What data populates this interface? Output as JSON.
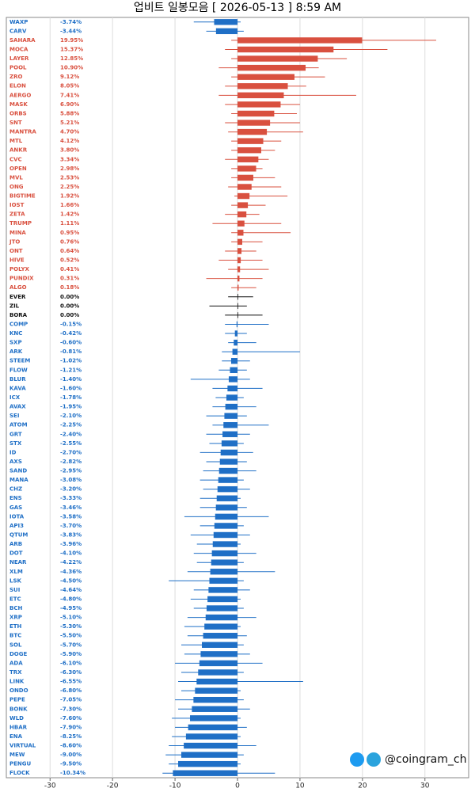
{
  "chart_data": {
    "type": "range-bar",
    "title": "업비트 일봉모음 [ 2026-05-13 ]  8:59 AM",
    "watermark": "@coingram_ch",
    "xlim": [
      -37,
      37
    ],
    "xticks": [
      -30,
      -20,
      -10,
      0,
      10,
      20,
      30
    ],
    "grid": true,
    "colors": {
      "up": "#d9503f",
      "flat": "#111111",
      "down": "#1f6fc6"
    },
    "categories": [
      "WAXP",
      "CARV",
      "SAHARA",
      "MOCA",
      "LAYER",
      "POOL",
      "ZRO",
      "ELON",
      "AERGO",
      "MASK",
      "ORBS",
      "SNT",
      "MANTRA",
      "MTL",
      "ANKR",
      "CVC",
      "OPEN",
      "MVL",
      "ONG",
      "BIGTIME",
      "IOST",
      "ZETA",
      "TRUMP",
      "MINA",
      "JTO",
      "ONT",
      "HIVE",
      "POLYX",
      "PUNDIX",
      "ALGO",
      "EVER",
      "ZIL",
      "BORA",
      "COMP",
      "KNC",
      "SXP",
      "ARK",
      "STEEM",
      "FLOW",
      "BLUR",
      "KAVA",
      "ICX",
      "AVAX",
      "SEI",
      "ATOM",
      "GRT",
      "STX",
      "ID",
      "AXS",
      "SAND",
      "MANA",
      "CHZ",
      "ENS",
      "GAS",
      "IOTA",
      "API3",
      "QTUM",
      "ARB",
      "DOT",
      "NEAR",
      "XLM",
      "LSK",
      "SUI",
      "ETC",
      "BCH",
      "XRP",
      "ETH",
      "BTC",
      "SOL",
      "DOGE",
      "ADA",
      "TRX",
      "LINK",
      "ONDO",
      "PEPE",
      "BONK",
      "WLD",
      "HBAR",
      "ENA",
      "VIRTUAL",
      "MEW",
      "PENGU",
      "FLOCK"
    ],
    "values": [
      -3.74,
      -3.44,
      19.95,
      15.37,
      12.85,
      10.9,
      9.12,
      8.05,
      7.41,
      6.9,
      5.88,
      5.21,
      4.7,
      4.12,
      3.8,
      3.34,
      2.98,
      2.53,
      2.25,
      1.92,
      1.66,
      1.42,
      1.11,
      0.95,
      0.76,
      0.64,
      0.52,
      0.41,
      0.31,
      0.18,
      0,
      0,
      0,
      -0.15,
      -0.42,
      -0.6,
      -0.81,
      -1.02,
      -1.21,
      -1.4,
      -1.6,
      -1.78,
      -1.95,
      -2.1,
      -2.25,
      -2.4,
      -2.55,
      -2.7,
      -2.82,
      -2.95,
      -3.08,
      -3.2,
      -3.33,
      -3.46,
      -3.58,
      -3.7,
      -3.83,
      -3.96,
      -4.1,
      -4.22,
      -4.36,
      -4.5,
      -4.64,
      -4.8,
      -4.95,
      -5.1,
      -5.3,
      -5.5,
      -5.7,
      -5.9,
      -6.1,
      -6.3,
      -6.55,
      -6.8,
      -7.05,
      -7.3,
      -7.6,
      -7.9,
      -8.25,
      -8.6,
      -9,
      -9.5,
      -10.34
    ],
    "value_labels": [
      "-3.74%",
      "-3.44%",
      "19.95%",
      "15.37%",
      "12.85%",
      "10.90%",
      "9.12%",
      "8.05%",
      "7.41%",
      "6.90%",
      "5.88%",
      "5.21%",
      "4.70%",
      "4.12%",
      "3.80%",
      "3.34%",
      "2.98%",
      "2.53%",
      "2.25%",
      "1.92%",
      "1.66%",
      "1.42%",
      "1.11%",
      "0.95%",
      "0.76%",
      "0.64%",
      "0.52%",
      "0.41%",
      "0.31%",
      "0.18%",
      "0.00%",
      "0.00%",
      "0.00%",
      "-0.15%",
      "-0.42%",
      "-0.60%",
      "-0.81%",
      "-1.02%",
      "-1.21%",
      "-1.40%",
      "-1.60%",
      "-1.78%",
      "-1.95%",
      "-2.10%",
      "-2.25%",
      "-2.40%",
      "-2.55%",
      "-2.70%",
      "-2.82%",
      "-2.95%",
      "-3.08%",
      "-3.20%",
      "-3.33%",
      "-3.46%",
      "-3.58%",
      "-3.70%",
      "-3.83%",
      "-3.96%",
      "-4.10%",
      "-4.22%",
      "-4.36%",
      "-4.50%",
      "-4.64%",
      "-4.80%",
      "-4.95%",
      "-5.10%",
      "-5.30%",
      "-5.50%",
      "-5.70%",
      "-5.90%",
      "-6.10%",
      "-6.30%",
      "-6.55%",
      "-6.80%",
      "-7.05%",
      "-7.30%",
      "-7.60%",
      "-7.90%",
      "-8.25%",
      "-8.60%",
      "-9.00%",
      "-9.50%",
      "-10.34%"
    ],
    "highs": [
      0.5,
      1,
      31.8,
      24,
      17.5,
      13,
      14,
      11,
      19,
      10,
      9.5,
      10,
      10.5,
      7,
      6,
      5,
      4,
      6,
      7,
      8,
      4.5,
      3.5,
      7,
      8.5,
      4,
      3,
      4,
      5,
      4,
      3,
      2.5,
      1.5,
      4,
      5,
      1.5,
      3,
      10,
      2,
      1.5,
      2,
      4,
      1,
      3,
      1.5,
      5,
      2,
      1,
      2.5,
      1.5,
      3,
      1,
      2,
      0.5,
      1.5,
      5,
      1,
      2,
      0.5,
      3,
      1,
      6,
      1,
      2,
      0.5,
      1,
      3,
      0.5,
      1.5,
      1,
      2,
      4,
      1,
      10.5,
      0.5,
      1,
      2,
      0.5,
      1.5,
      0.5,
      3,
      1,
      0.5,
      6
    ],
    "lows": [
      -7,
      -5,
      -1,
      -2,
      -1,
      -3,
      -1,
      -2,
      -3,
      -2,
      -1,
      -2,
      -1.5,
      -1,
      -1,
      -2,
      -1,
      -1,
      -1.5,
      -0.5,
      -1,
      -2,
      -4,
      -1,
      -1,
      -2,
      -3,
      -1.5,
      -5,
      -1,
      -1.5,
      -4.5,
      -2,
      -2,
      -2,
      -1.5,
      -2.5,
      -2.5,
      -3,
      -7.5,
      -4,
      -3.5,
      -4,
      -5,
      -4,
      -5,
      -4.5,
      -6,
      -5,
      -5.5,
      -6,
      -5.5,
      -6,
      -6,
      -8.5,
      -6,
      -7.5,
      -6.5,
      -7,
      -6.5,
      -8,
      -11,
      -7,
      -7.5,
      -7,
      -8,
      -8.5,
      -8,
      -9,
      -8.5,
      -10,
      -9,
      -9.5,
      -9,
      -10,
      -9.5,
      -10.5,
      -10,
      -10.5,
      -11,
      -11.5,
      -11,
      -12
    ]
  }
}
